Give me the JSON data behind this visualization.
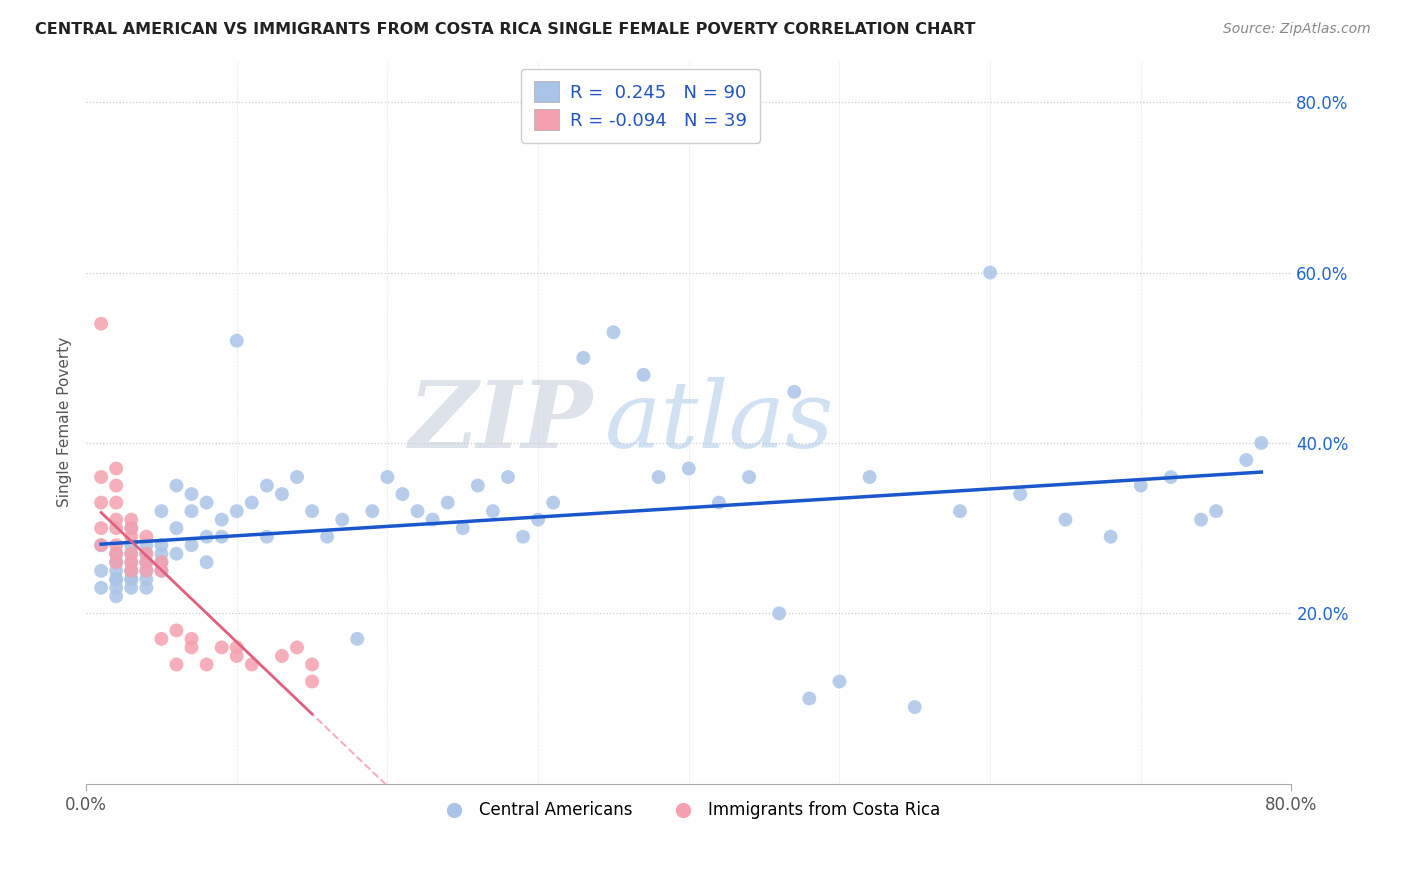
{
  "title": "CENTRAL AMERICAN VS IMMIGRANTS FROM COSTA RICA SINGLE FEMALE POVERTY CORRELATION CHART",
  "source": "Source: ZipAtlas.com",
  "ylabel": "Single Female Poverty",
  "xlim": [
    0.0,
    0.8
  ],
  "ylim": [
    0.0,
    0.85
  ],
  "ytick_positions_right": [
    0.2,
    0.4,
    0.6,
    0.8
  ],
  "ytick_labels_right": [
    "20.0%",
    "40.0%",
    "60.0%",
    "80.0%"
  ],
  "blue_R": 0.245,
  "blue_N": 90,
  "pink_R": -0.094,
  "pink_N": 39,
  "blue_color": "#aac4e8",
  "pink_color": "#f4a0ae",
  "blue_line_color": "#1a56cc",
  "pink_line_color": "#e06080",
  "pink_dash_color": "#f0b0c0",
  "watermark_zip": "ZIP",
  "watermark_atlas": "atlas",
  "legend_labels": [
    "Central Americans",
    "Immigrants from Costa Rica"
  ],
  "blue_scatter_x": [
    0.01,
    0.01,
    0.01,
    0.02,
    0.02,
    0.02,
    0.02,
    0.02,
    0.02,
    0.02,
    0.02,
    0.03,
    0.03,
    0.03,
    0.03,
    0.03,
    0.03,
    0.03,
    0.03,
    0.03,
    0.04,
    0.04,
    0.04,
    0.04,
    0.04,
    0.04,
    0.05,
    0.05,
    0.05,
    0.05,
    0.05,
    0.06,
    0.06,
    0.06,
    0.07,
    0.07,
    0.07,
    0.08,
    0.08,
    0.08,
    0.09,
    0.09,
    0.1,
    0.1,
    0.11,
    0.12,
    0.12,
    0.13,
    0.14,
    0.15,
    0.16,
    0.17,
    0.18,
    0.19,
    0.2,
    0.21,
    0.22,
    0.23,
    0.24,
    0.25,
    0.26,
    0.27,
    0.28,
    0.29,
    0.3,
    0.31,
    0.33,
    0.35,
    0.37,
    0.38,
    0.4,
    0.42,
    0.44,
    0.46,
    0.47,
    0.48,
    0.5,
    0.52,
    0.55,
    0.58,
    0.6,
    0.62,
    0.65,
    0.68,
    0.7,
    0.72,
    0.74,
    0.75,
    0.77,
    0.78
  ],
  "blue_scatter_y": [
    0.28,
    0.25,
    0.23,
    0.27,
    0.26,
    0.25,
    0.24,
    0.23,
    0.22,
    0.26,
    0.24,
    0.28,
    0.27,
    0.26,
    0.25,
    0.24,
    0.23,
    0.24,
    0.25,
    0.3,
    0.27,
    0.26,
    0.25,
    0.24,
    0.23,
    0.28,
    0.32,
    0.28,
    0.27,
    0.26,
    0.25,
    0.35,
    0.3,
    0.27,
    0.34,
    0.32,
    0.28,
    0.33,
    0.29,
    0.26,
    0.31,
    0.29,
    0.52,
    0.32,
    0.33,
    0.35,
    0.29,
    0.34,
    0.36,
    0.32,
    0.29,
    0.31,
    0.17,
    0.32,
    0.36,
    0.34,
    0.32,
    0.31,
    0.33,
    0.3,
    0.35,
    0.32,
    0.36,
    0.29,
    0.31,
    0.33,
    0.5,
    0.53,
    0.48,
    0.36,
    0.37,
    0.33,
    0.36,
    0.2,
    0.46,
    0.1,
    0.12,
    0.36,
    0.09,
    0.32,
    0.6,
    0.34,
    0.31,
    0.29,
    0.35,
    0.36,
    0.31,
    0.32,
    0.38,
    0.4
  ],
  "pink_scatter_x": [
    0.01,
    0.01,
    0.01,
    0.01,
    0.01,
    0.02,
    0.02,
    0.02,
    0.02,
    0.02,
    0.02,
    0.02,
    0.02,
    0.03,
    0.03,
    0.03,
    0.03,
    0.03,
    0.03,
    0.04,
    0.04,
    0.04,
    0.04,
    0.05,
    0.05,
    0.05,
    0.06,
    0.06,
    0.07,
    0.07,
    0.08,
    0.09,
    0.1,
    0.1,
    0.11,
    0.13,
    0.14,
    0.15,
    0.15
  ],
  "pink_scatter_y": [
    0.54,
    0.36,
    0.33,
    0.3,
    0.28,
    0.37,
    0.35,
    0.33,
    0.31,
    0.3,
    0.28,
    0.27,
    0.26,
    0.31,
    0.3,
    0.29,
    0.27,
    0.26,
    0.25,
    0.29,
    0.27,
    0.26,
    0.25,
    0.26,
    0.25,
    0.17,
    0.18,
    0.14,
    0.17,
    0.16,
    0.14,
    0.16,
    0.16,
    0.15,
    0.14,
    0.15,
    0.16,
    0.14,
    0.12
  ]
}
